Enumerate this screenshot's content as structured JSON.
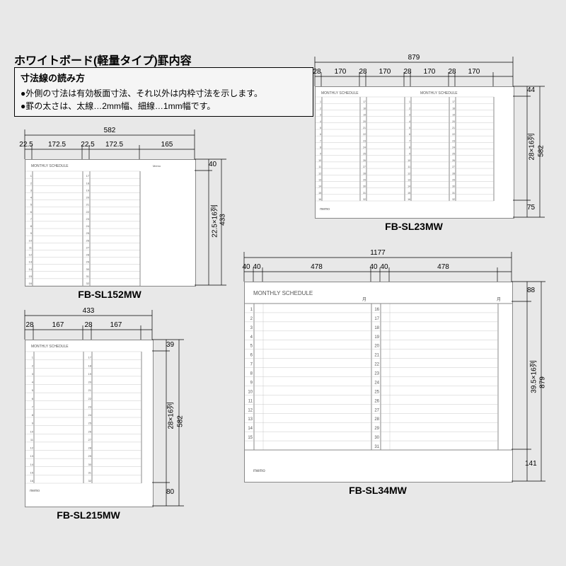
{
  "title": "ホワイトボード(軽量タイプ)罫内容",
  "note": {
    "title": "寸法線の読み方",
    "line1": "●外側の寸法は有効板面寸法、それ以外は内枠寸法を示します。",
    "line2": "●罫の太さは、太線…2mm幅、細線…1mm幅です。"
  },
  "boards": {
    "sl152mw": {
      "label": "FB-SL152MW",
      "header": "MONTHLY SCHEDULE",
      "dims": {
        "total_w": "582",
        "col1_num": "22.5",
        "col1_w": "172.5",
        "col2_num": "22.5",
        "col2_w": "172.5",
        "memo_w": "165",
        "top_h": "40",
        "row_spec": "22.5×16列",
        "total_h": "433"
      },
      "rows_per_col": 16,
      "cols": 2
    },
    "sl215mw": {
      "label": "FB-SL215MW",
      "header": "MONTHLY SCHEDULE",
      "dims": {
        "total_w": "433",
        "col1_num": "28",
        "col1_w": "167",
        "col2_num": "28",
        "col2_w": "167",
        "top_h": "39",
        "row_spec": "28×16列",
        "total_h": "582",
        "bottom_h": "80"
      },
      "rows_per_col": 16,
      "cols": 2
    },
    "sl23mw": {
      "label": "FB-SL23MW",
      "header": "MONTHLY SCHEDULE",
      "dims": {
        "total_w": "879",
        "num_w": "28",
        "col_w": "170",
        "top_h": "44",
        "row_spec": "28×16列",
        "total_h": "582",
        "bottom_h": "75"
      },
      "rows_per_col": 16,
      "cols": 4
    },
    "sl34mw": {
      "label": "FB-SL34MW",
      "header": "MONTHLY SCHEDULE",
      "memo": "memo",
      "dims": {
        "total_w": "1177",
        "num1_w": "40",
        "num1b_w": "40",
        "col1_w": "478",
        "num2_w": "40",
        "num2b_w": "40",
        "col2_w": "478",
        "top_h": "88",
        "row_spec": "39.5×16列",
        "total_h": "879",
        "bottom_h": "141"
      },
      "rows_per_col": 16,
      "cols": 2,
      "left_start": 1
    }
  },
  "palette": {
    "bg": "#e8e8e8",
    "board_bg": "#ffffff",
    "line": "#000000",
    "grid": "#bbbbbb"
  }
}
